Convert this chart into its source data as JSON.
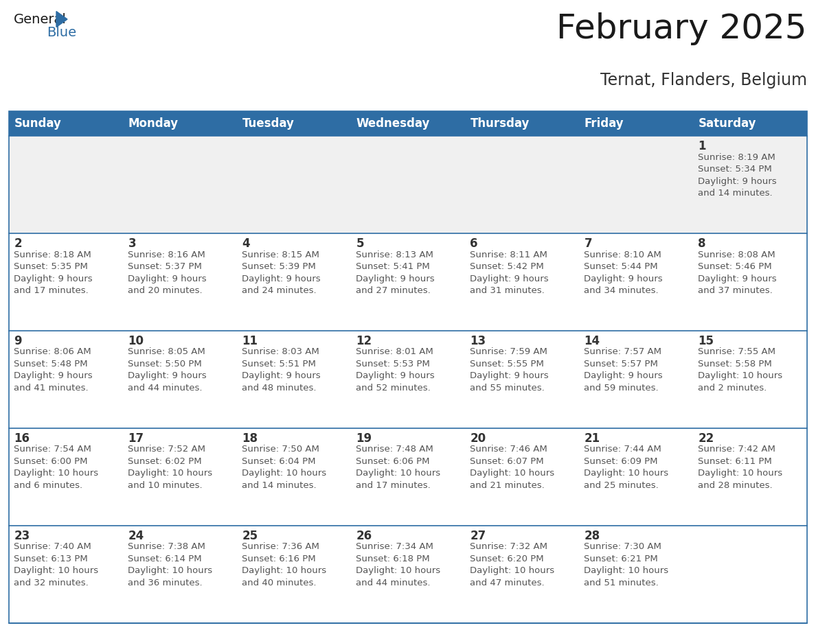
{
  "title": "February 2025",
  "subtitle": "Ternat, Flanders, Belgium",
  "header_bg": "#2E6DA4",
  "header_text_color": "#FFFFFF",
  "cell_bg_white": "#FFFFFF",
  "cell_bg_gray": "#F0F0F0",
  "row_border_color": "#2E6DA4",
  "outer_border_color": "#2E6DA4",
  "day_text_color": "#333333",
  "info_text_color": "#555555",
  "days_of_week": [
    "Sunday",
    "Monday",
    "Tuesday",
    "Wednesday",
    "Thursday",
    "Friday",
    "Saturday"
  ],
  "weeks": [
    [
      {
        "day": "",
        "info": ""
      },
      {
        "day": "",
        "info": ""
      },
      {
        "day": "",
        "info": ""
      },
      {
        "day": "",
        "info": ""
      },
      {
        "day": "",
        "info": ""
      },
      {
        "day": "",
        "info": ""
      },
      {
        "day": "1",
        "info": "Sunrise: 8:19 AM\nSunset: 5:34 PM\nDaylight: 9 hours\nand 14 minutes."
      }
    ],
    [
      {
        "day": "2",
        "info": "Sunrise: 8:18 AM\nSunset: 5:35 PM\nDaylight: 9 hours\nand 17 minutes."
      },
      {
        "day": "3",
        "info": "Sunrise: 8:16 AM\nSunset: 5:37 PM\nDaylight: 9 hours\nand 20 minutes."
      },
      {
        "day": "4",
        "info": "Sunrise: 8:15 AM\nSunset: 5:39 PM\nDaylight: 9 hours\nand 24 minutes."
      },
      {
        "day": "5",
        "info": "Sunrise: 8:13 AM\nSunset: 5:41 PM\nDaylight: 9 hours\nand 27 minutes."
      },
      {
        "day": "6",
        "info": "Sunrise: 8:11 AM\nSunset: 5:42 PM\nDaylight: 9 hours\nand 31 minutes."
      },
      {
        "day": "7",
        "info": "Sunrise: 8:10 AM\nSunset: 5:44 PM\nDaylight: 9 hours\nand 34 minutes."
      },
      {
        "day": "8",
        "info": "Sunrise: 8:08 AM\nSunset: 5:46 PM\nDaylight: 9 hours\nand 37 minutes."
      }
    ],
    [
      {
        "day": "9",
        "info": "Sunrise: 8:06 AM\nSunset: 5:48 PM\nDaylight: 9 hours\nand 41 minutes."
      },
      {
        "day": "10",
        "info": "Sunrise: 8:05 AM\nSunset: 5:50 PM\nDaylight: 9 hours\nand 44 minutes."
      },
      {
        "day": "11",
        "info": "Sunrise: 8:03 AM\nSunset: 5:51 PM\nDaylight: 9 hours\nand 48 minutes."
      },
      {
        "day": "12",
        "info": "Sunrise: 8:01 AM\nSunset: 5:53 PM\nDaylight: 9 hours\nand 52 minutes."
      },
      {
        "day": "13",
        "info": "Sunrise: 7:59 AM\nSunset: 5:55 PM\nDaylight: 9 hours\nand 55 minutes."
      },
      {
        "day": "14",
        "info": "Sunrise: 7:57 AM\nSunset: 5:57 PM\nDaylight: 9 hours\nand 59 minutes."
      },
      {
        "day": "15",
        "info": "Sunrise: 7:55 AM\nSunset: 5:58 PM\nDaylight: 10 hours\nand 2 minutes."
      }
    ],
    [
      {
        "day": "16",
        "info": "Sunrise: 7:54 AM\nSunset: 6:00 PM\nDaylight: 10 hours\nand 6 minutes."
      },
      {
        "day": "17",
        "info": "Sunrise: 7:52 AM\nSunset: 6:02 PM\nDaylight: 10 hours\nand 10 minutes."
      },
      {
        "day": "18",
        "info": "Sunrise: 7:50 AM\nSunset: 6:04 PM\nDaylight: 10 hours\nand 14 minutes."
      },
      {
        "day": "19",
        "info": "Sunrise: 7:48 AM\nSunset: 6:06 PM\nDaylight: 10 hours\nand 17 minutes."
      },
      {
        "day": "20",
        "info": "Sunrise: 7:46 AM\nSunset: 6:07 PM\nDaylight: 10 hours\nand 21 minutes."
      },
      {
        "day": "21",
        "info": "Sunrise: 7:44 AM\nSunset: 6:09 PM\nDaylight: 10 hours\nand 25 minutes."
      },
      {
        "day": "22",
        "info": "Sunrise: 7:42 AM\nSunset: 6:11 PM\nDaylight: 10 hours\nand 28 minutes."
      }
    ],
    [
      {
        "day": "23",
        "info": "Sunrise: 7:40 AM\nSunset: 6:13 PM\nDaylight: 10 hours\nand 32 minutes."
      },
      {
        "day": "24",
        "info": "Sunrise: 7:38 AM\nSunset: 6:14 PM\nDaylight: 10 hours\nand 36 minutes."
      },
      {
        "day": "25",
        "info": "Sunrise: 7:36 AM\nSunset: 6:16 PM\nDaylight: 10 hours\nand 40 minutes."
      },
      {
        "day": "26",
        "info": "Sunrise: 7:34 AM\nSunset: 6:18 PM\nDaylight: 10 hours\nand 44 minutes."
      },
      {
        "day": "27",
        "info": "Sunrise: 7:32 AM\nSunset: 6:20 PM\nDaylight: 10 hours\nand 47 minutes."
      },
      {
        "day": "28",
        "info": "Sunrise: 7:30 AM\nSunset: 6:21 PM\nDaylight: 10 hours\nand 51 minutes."
      },
      {
        "day": "",
        "info": ""
      }
    ]
  ],
  "logo_general_color": "#1a1a1a",
  "logo_blue_color": "#2E6DA4",
  "title_fontsize": 36,
  "subtitle_fontsize": 17,
  "header_fontsize": 12,
  "day_num_fontsize": 12,
  "info_fontsize": 9.5
}
